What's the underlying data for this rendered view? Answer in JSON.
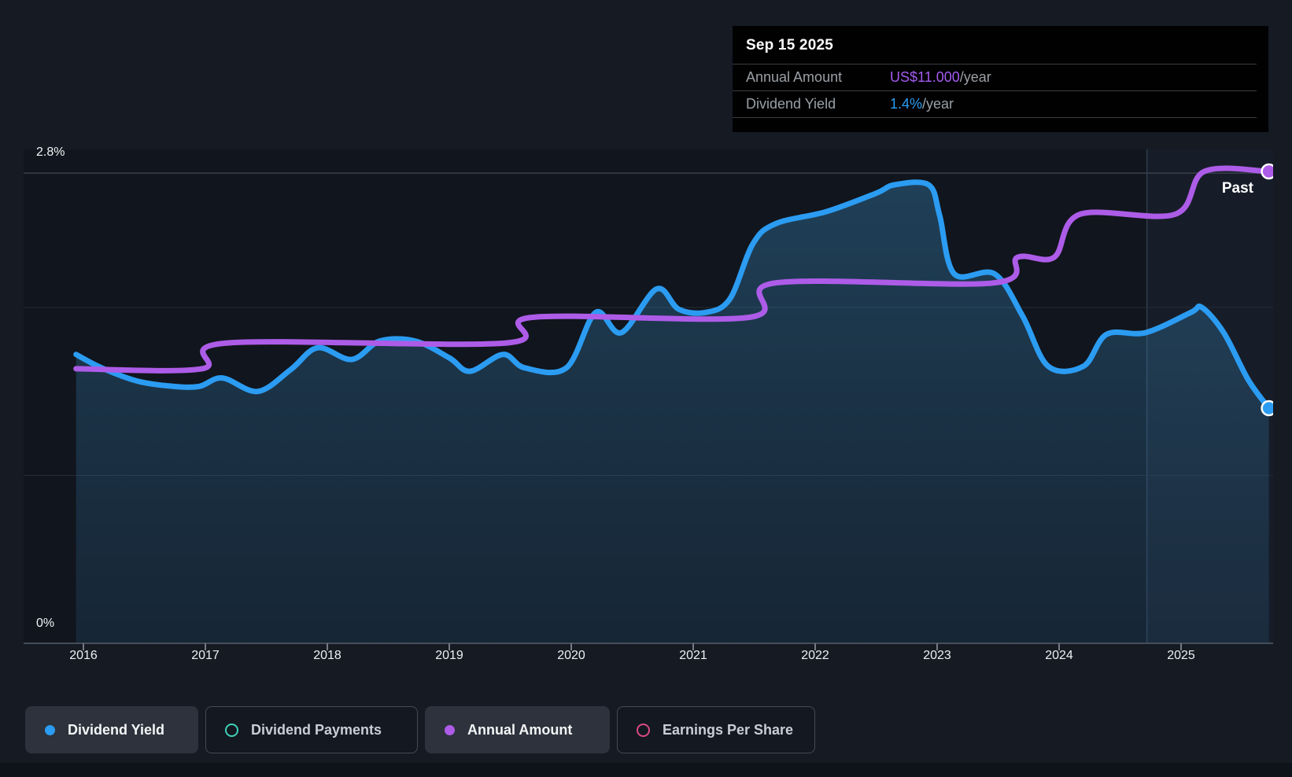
{
  "tooltip": {
    "date": "Sep 15 2025",
    "rows": [
      {
        "label": "Annual Amount",
        "value": "US$11.000",
        "suffix": "/year",
        "value_color": "#a35cf0"
      },
      {
        "label": "Dividend Yield",
        "value": "1.4%",
        "suffix": "/year",
        "value_color": "#2b9df4"
      }
    ]
  },
  "past_label": "Past",
  "legend": [
    {
      "label": "Dividend Yield",
      "marker": "filled",
      "color": "#2b9cf2",
      "active": true
    },
    {
      "label": "Dividend Payments",
      "marker": "hollow",
      "color": "#40d0b8",
      "active": false
    },
    {
      "label": "Annual Amount",
      "marker": "filled",
      "color": "#ad5ce8",
      "active": true
    },
    {
      "label": "Earnings Per Share",
      "marker": "hollow",
      "color": "#d84a85",
      "active": false
    }
  ],
  "chart_data": {
    "type": "line",
    "x": {
      "min": 2015.94,
      "max": 2025.72,
      "ticks": [
        2016,
        2017,
        2018,
        2019,
        2020,
        2021,
        2022,
        2023,
        2024,
        2025
      ]
    },
    "y_labels": {
      "top": "2.8%",
      "bottom": "0%"
    },
    "axes": {
      "percent": {
        "min": 0,
        "max": 2.8,
        "gridlines": [
          2.8,
          2.0,
          1.0,
          0
        ]
      },
      "usd": {
        "min": 0,
        "max": 11.0
      }
    },
    "past_divider_year": 2024.72,
    "series": [
      {
        "name": "Dividend Yield",
        "unit": "%",
        "axis": "percent",
        "color": "#2b9cf2",
        "style": "area-line",
        "points": [
          [
            2015.94,
            1.72
          ],
          [
            2016.15,
            1.64
          ],
          [
            2016.45,
            1.56
          ],
          [
            2016.74,
            1.53
          ],
          [
            2016.95,
            1.53
          ],
          [
            2017.14,
            1.58
          ],
          [
            2017.43,
            1.5
          ],
          [
            2017.7,
            1.63
          ],
          [
            2017.92,
            1.76
          ],
          [
            2018.2,
            1.69
          ],
          [
            2018.43,
            1.8
          ],
          [
            2018.72,
            1.8
          ],
          [
            2019.0,
            1.7
          ],
          [
            2019.17,
            1.62
          ],
          [
            2019.44,
            1.72
          ],
          [
            2019.62,
            1.64
          ],
          [
            2019.96,
            1.64
          ],
          [
            2020.2,
            1.97
          ],
          [
            2020.41,
            1.85
          ],
          [
            2020.7,
            2.11
          ],
          [
            2020.88,
            1.99
          ],
          [
            2021.1,
            1.97
          ],
          [
            2021.3,
            2.05
          ],
          [
            2021.49,
            2.38
          ],
          [
            2021.68,
            2.5
          ],
          [
            2022.09,
            2.57
          ],
          [
            2022.5,
            2.68
          ],
          [
            2022.65,
            2.73
          ],
          [
            2022.93,
            2.73
          ],
          [
            2023.02,
            2.55
          ],
          [
            2023.14,
            2.2
          ],
          [
            2023.47,
            2.2
          ],
          [
            2023.7,
            1.95
          ],
          [
            2023.91,
            1.65
          ],
          [
            2024.2,
            1.65
          ],
          [
            2024.39,
            1.84
          ],
          [
            2024.71,
            1.85
          ],
          [
            2025.08,
            1.97
          ],
          [
            2025.17,
            2.0
          ],
          [
            2025.35,
            1.85
          ],
          [
            2025.55,
            1.57
          ],
          [
            2025.72,
            1.4
          ]
        ]
      },
      {
        "name": "Annual Amount",
        "unit": "US$/year",
        "axis": "usd",
        "color": "#ad5ce8",
        "style": "line",
        "points": [
          [
            2015.94,
            6.4
          ],
          [
            2016.97,
            6.4
          ],
          [
            2017.17,
            7.0
          ],
          [
            2019.46,
            7.0
          ],
          [
            2019.68,
            7.6
          ],
          [
            2021.46,
            7.6
          ],
          [
            2021.67,
            8.4
          ],
          [
            2023.46,
            8.4
          ],
          [
            2023.66,
            9.0
          ],
          [
            2023.96,
            9.0
          ],
          [
            2024.17,
            10.0
          ],
          [
            2024.95,
            10.0
          ],
          [
            2025.19,
            11.0
          ],
          [
            2025.72,
            11.0
          ]
        ]
      }
    ],
    "end_markers": [
      {
        "series": "Annual Amount",
        "x": 2025.72,
        "value": 11.0
      },
      {
        "series": "Dividend Yield",
        "x": 2025.72,
        "value": 1.4
      }
    ]
  },
  "colors": {
    "background": "#151a23",
    "plot_shade": "rgba(0,0,0,0.16)",
    "grid_top": "#3a414d",
    "grid_minor": "#242c37",
    "axis_line": "#454e5a",
    "tick": "#757b85",
    "past_band": "rgba(125,175,225,0.06)",
    "past_line": "rgba(150,190,230,0.22)",
    "fill_top": "#3c96cd",
    "fill_bottom": "#285a82",
    "tooltip_bg": "#010101"
  }
}
